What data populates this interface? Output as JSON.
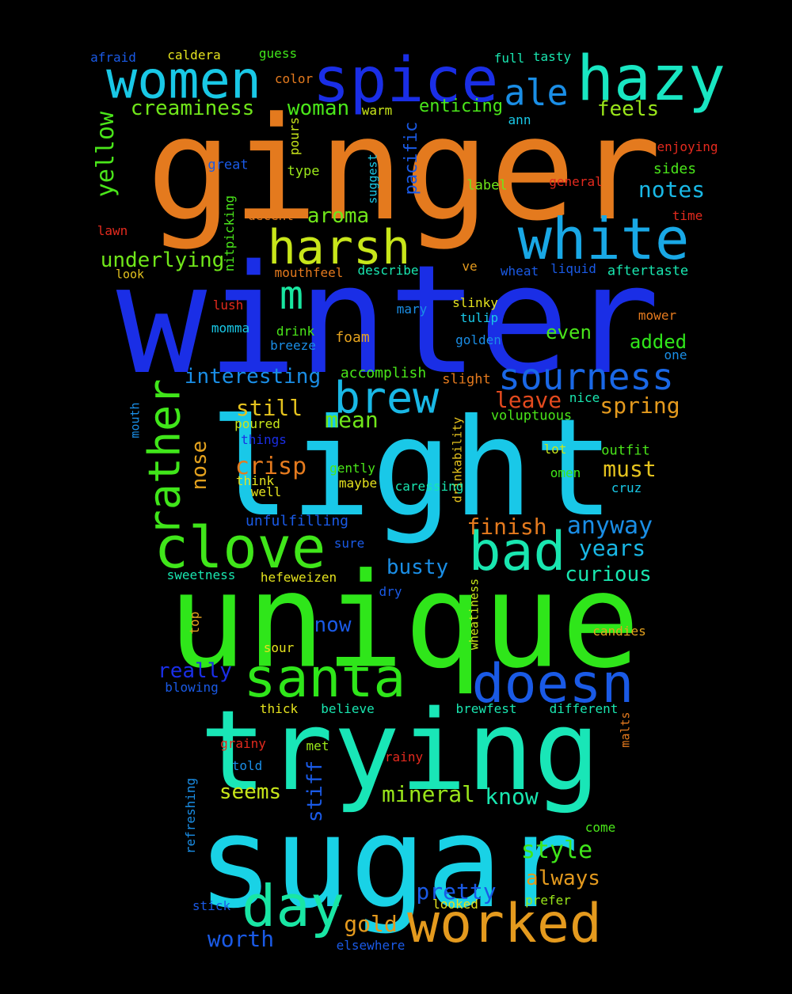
{
  "words": [
    {
      "text": "winter",
      "color": "#1a2ee6"
    },
    {
      "text": "ginger",
      "color": "#e47a1e"
    },
    {
      "text": "light",
      "color": "#19c8e8"
    },
    {
      "text": "unique",
      "color": "#2fe61a"
    },
    {
      "text": "trying",
      "color": "#19e6b7"
    },
    {
      "text": "sugar",
      "color": "#19d2e6"
    },
    {
      "text": "spice",
      "color": "#1a2ee6"
    },
    {
      "text": "hazy",
      "color": "#19e6c2"
    },
    {
      "text": "white",
      "color": "#19a8e6"
    },
    {
      "text": "women",
      "color": "#19c8e6"
    },
    {
      "text": "harsh",
      "color": "#c8e61a"
    },
    {
      "text": "clove",
      "color": "#40e61a"
    },
    {
      "text": "bad",
      "color": "#19e6b0"
    },
    {
      "text": "santa",
      "color": "#2fe61a"
    },
    {
      "text": "doesn",
      "color": "#1a5ae6"
    },
    {
      "text": "worked",
      "color": "#e49a1e"
    },
    {
      "text": "day",
      "color": "#19e6a4"
    },
    {
      "text": "brew",
      "color": "#19b8e6"
    },
    {
      "text": "sourness",
      "color": "#1a68e6"
    },
    {
      "text": "rather",
      "color": "#40e61a"
    },
    {
      "text": "ale",
      "color": "#1a8ee6"
    },
    {
      "text": "m",
      "color": "#19e6a0"
    },
    {
      "text": "yellow",
      "color": "#4ae61a"
    },
    {
      "text": "creaminess",
      "color": "#70e61a"
    },
    {
      "text": "woman",
      "color": "#4ae61a"
    },
    {
      "text": "enticing",
      "color": "#4ae61a"
    },
    {
      "text": "feels",
      "color": "#9ae61a"
    },
    {
      "text": "notes",
      "color": "#19b8e6"
    },
    {
      "text": "underlying",
      "color": "#70e61a"
    },
    {
      "text": "aroma",
      "color": "#70e61a"
    },
    {
      "text": "interesting",
      "color": "#1a8ee6"
    },
    {
      "text": "still",
      "color": "#e4c21e"
    },
    {
      "text": "mean",
      "color": "#70e61a"
    },
    {
      "text": "leave",
      "color": "#e44a1e"
    },
    {
      "text": "spring",
      "color": "#e49a1e"
    },
    {
      "text": "crisp",
      "color": "#e47a1e"
    },
    {
      "text": "must",
      "color": "#e4c21e"
    },
    {
      "text": "nose",
      "color": "#e4a21e"
    },
    {
      "text": "finish",
      "color": "#e47a1e"
    },
    {
      "text": "anyway",
      "color": "#1a8ee6"
    },
    {
      "text": "years",
      "color": "#19b8e6"
    },
    {
      "text": "busty",
      "color": "#1a8ee6"
    },
    {
      "text": "curious",
      "color": "#19e6b0"
    },
    {
      "text": "now",
      "color": "#1a5ae6"
    },
    {
      "text": "really",
      "color": "#1a2ee6"
    },
    {
      "text": "mineral",
      "color": "#9ae61a"
    },
    {
      "text": "know",
      "color": "#19e6b0"
    },
    {
      "text": "seems",
      "color": "#c8e61a"
    },
    {
      "text": "stiff",
      "color": "#1a5ae6"
    },
    {
      "text": "style",
      "color": "#40e61a"
    },
    {
      "text": "always",
      "color": "#e49a1e"
    },
    {
      "text": "pretty",
      "color": "#1a5ae6"
    },
    {
      "text": "gold",
      "color": "#e49a1e"
    },
    {
      "text": "worth",
      "color": "#1a5ae6"
    },
    {
      "text": "even",
      "color": "#4ae61a"
    },
    {
      "text": "added",
      "color": "#2fe61a"
    },
    {
      "text": "pacific",
      "color": "#1a5ae6"
    },
    {
      "text": "afraid",
      "color": "#1a5ae6"
    },
    {
      "text": "caldera",
      "color": "#e4e21e"
    },
    {
      "text": "guess",
      "color": "#40e61a"
    },
    {
      "text": "full",
      "color": "#19e6b0"
    },
    {
      "text": "tasty",
      "color": "#19e6b0"
    },
    {
      "text": "color",
      "color": "#e47a1e"
    },
    {
      "text": "warm",
      "color": "#c8e61a"
    },
    {
      "text": "ann",
      "color": "#19c8e6"
    },
    {
      "text": "enjoying",
      "color": "#e42a1e"
    },
    {
      "text": "great",
      "color": "#1a5ae6"
    },
    {
      "text": "type",
      "color": "#9ae61a"
    },
    {
      "text": "pours",
      "color": "#c8e61a"
    },
    {
      "text": "suggest",
      "color": "#19c8e6"
    },
    {
      "text": "label",
      "color": "#70e61a"
    },
    {
      "text": "general",
      "color": "#e42a1e"
    },
    {
      "text": "sides",
      "color": "#4ae61a"
    },
    {
      "text": "time",
      "color": "#e42a1e"
    },
    {
      "text": "lawn",
      "color": "#e42a1e"
    },
    {
      "text": "nitpicking",
      "color": "#4ae61a"
    },
    {
      "text": "decent",
      "color": "#e47a1e"
    },
    {
      "text": "look",
      "color": "#e4c21e"
    },
    {
      "text": "mouthfeel",
      "color": "#e47a1e"
    },
    {
      "text": "describe",
      "color": "#19e6b0"
    },
    {
      "text": "ve",
      "color": "#e49a1e"
    },
    {
      "text": "wheat",
      "color": "#1a5ae6"
    },
    {
      "text": "liquid",
      "color": "#1a5ae6"
    },
    {
      "text": "aftertaste",
      "color": "#19e6b0"
    },
    {
      "text": "lush",
      "color": "#e42a1e"
    },
    {
      "text": "mary",
      "color": "#1a8ee6"
    },
    {
      "text": "slinky",
      "color": "#e4e21e"
    },
    {
      "text": "tulip",
      "color": "#19c8e6"
    },
    {
      "text": "mower",
      "color": "#e47a1e"
    },
    {
      "text": "momma",
      "color": "#19c8e6"
    },
    {
      "text": "drink",
      "color": "#4ae61a"
    },
    {
      "text": "breeze",
      "color": "#1a8ee6"
    },
    {
      "text": "foam",
      "color": "#e4a21e"
    },
    {
      "text": "golden",
      "color": "#1a8ee6"
    },
    {
      "text": "one",
      "color": "#1a8ee6"
    },
    {
      "text": "slight",
      "color": "#e47a1e"
    },
    {
      "text": "accomplish",
      "color": "#4ae61a"
    },
    {
      "text": "nice",
      "color": "#19e6b0"
    },
    {
      "text": "mouth",
      "color": "#1a8ee6"
    },
    {
      "text": "poured",
      "color": "#c8e61a"
    },
    {
      "text": "things",
      "color": "#1a2ee6"
    },
    {
      "text": "voluptuous",
      "color": "#4ae61a"
    },
    {
      "text": "drinkability",
      "color": "#e4c21e"
    },
    {
      "text": "lot",
      "color": "#c8e61a"
    },
    {
      "text": "outfit",
      "color": "#4ae61a"
    },
    {
      "text": "gently",
      "color": "#4ae61a"
    },
    {
      "text": "omen",
      "color": "#40e61a"
    },
    {
      "text": "think",
      "color": "#e4e21e"
    },
    {
      "text": "maybe",
      "color": "#e4e21e"
    },
    {
      "text": "caressing",
      "color": "#19e6b0"
    },
    {
      "text": "cruz",
      "color": "#19c8e6"
    },
    {
      "text": "well",
      "color": "#e4e21e"
    },
    {
      "text": "unfulfilling",
      "color": "#1a5ae6"
    },
    {
      "text": "sure",
      "color": "#1a5ae6"
    },
    {
      "text": "sweetness",
      "color": "#19e6b0"
    },
    {
      "text": "hefeweizen",
      "color": "#e4e21e"
    },
    {
      "text": "wheatiness",
      "color": "#c8e61a"
    },
    {
      "text": "top",
      "color": "#e4a21e"
    },
    {
      "text": "dry",
      "color": "#1a5ae6"
    },
    {
      "text": "candies",
      "color": "#e4a21e"
    },
    {
      "text": "sour",
      "color": "#e4e21e"
    },
    {
      "text": "blowing",
      "color": "#1a5ae6"
    },
    {
      "text": "thick",
      "color": "#e4e21e"
    },
    {
      "text": "believe",
      "color": "#19e6b0"
    },
    {
      "text": "brewfest",
      "color": "#19e6b0"
    },
    {
      "text": "different",
      "color": "#19e6b0"
    },
    {
      "text": "malts",
      "color": "#e47a1e"
    },
    {
      "text": "grainy",
      "color": "#e42a1e"
    },
    {
      "text": "met",
      "color": "#9ae61a"
    },
    {
      "text": "rainy",
      "color": "#e42a1e"
    },
    {
      "text": "told",
      "color": "#1a8ee6"
    },
    {
      "text": "refreshing",
      "color": "#1a8ee6"
    },
    {
      "text": "come",
      "color": "#4ae61a"
    },
    {
      "text": "stick",
      "color": "#1a5ae6"
    },
    {
      "text": "looked",
      "color": "#e4e21e"
    },
    {
      "text": "prefer",
      "color": "#9ae61a"
    },
    {
      "text": "elsewhere",
      "color": "#1a5ae6"
    }
  ]
}
